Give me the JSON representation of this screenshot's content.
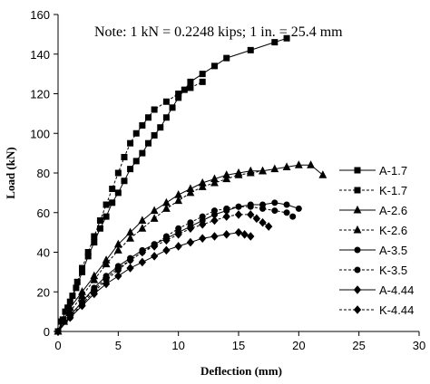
{
  "chart_data": {
    "type": "line",
    "title": "",
    "note": "Note: 1 kN = 0.2248 kips; 1 in. = 25.4 mm",
    "xlabel": "Deflection (mm)",
    "ylabel": "Load (kN)",
    "xlim": [
      0,
      30
    ],
    "ylim": [
      0,
      160
    ],
    "xticks": [
      0,
      5,
      10,
      15,
      20,
      25,
      30
    ],
    "yticks": [
      0,
      20,
      40,
      60,
      80,
      100,
      120,
      140,
      160
    ],
    "grid": false,
    "legend_position": "right",
    "series": [
      {
        "name": "A-1.7",
        "marker": "square",
        "dash": "solid",
        "color": "#000000",
        "points": [
          [
            0,
            0
          ],
          [
            0.3,
            5
          ],
          [
            0.6,
            10
          ],
          [
            1,
            15
          ],
          [
            1.5,
            22
          ],
          [
            2,
            30
          ],
          [
            2.5,
            38
          ],
          [
            3,
            45
          ],
          [
            3.5,
            52
          ],
          [
            4,
            58
          ],
          [
            4.5,
            65
          ],
          [
            5,
            70
          ],
          [
            5.5,
            76
          ],
          [
            6,
            82
          ],
          [
            6.5,
            86
          ],
          [
            7,
            90
          ],
          [
            7.5,
            95
          ],
          [
            8,
            99
          ],
          [
            8.5,
            103
          ],
          [
            9,
            108
          ],
          [
            9.5,
            113
          ],
          [
            10,
            118
          ],
          [
            10.5,
            122
          ],
          [
            11,
            126
          ],
          [
            12,
            130
          ],
          [
            13,
            134
          ],
          [
            14,
            138
          ],
          [
            16,
            142
          ],
          [
            18,
            146
          ],
          [
            19,
            148
          ]
        ]
      },
      {
        "name": "K-1.7",
        "marker": "square",
        "dash": "dash",
        "color": "#000000",
        "points": [
          [
            0,
            0
          ],
          [
            0.4,
            6
          ],
          [
            0.8,
            12
          ],
          [
            1.2,
            18
          ],
          [
            1.6,
            25
          ],
          [
            2,
            32
          ],
          [
            2.5,
            40
          ],
          [
            3,
            48
          ],
          [
            3.5,
            56
          ],
          [
            4,
            64
          ],
          [
            4.5,
            72
          ],
          [
            5,
            80
          ],
          [
            5.5,
            88
          ],
          [
            6,
            95
          ],
          [
            6.5,
            100
          ],
          [
            7,
            104
          ],
          [
            7.5,
            108
          ],
          [
            8,
            112
          ],
          [
            9,
            116
          ],
          [
            10,
            120
          ],
          [
            11,
            123
          ],
          [
            12,
            126
          ]
        ]
      },
      {
        "name": "A-2.6",
        "marker": "triangle",
        "dash": "solid",
        "color": "#000000",
        "points": [
          [
            0,
            0
          ],
          [
            0.5,
            6
          ],
          [
            1,
            12
          ],
          [
            2,
            20
          ],
          [
            3,
            28
          ],
          [
            4,
            36
          ],
          [
            5,
            44
          ],
          [
            6,
            50
          ],
          [
            7,
            56
          ],
          [
            8,
            61
          ],
          [
            9,
            65
          ],
          [
            10,
            69
          ],
          [
            11,
            72
          ],
          [
            12,
            75
          ],
          [
            13,
            77
          ],
          [
            14,
            79
          ],
          [
            15,
            80
          ],
          [
            16,
            81
          ],
          [
            17,
            81
          ],
          [
            18,
            82
          ],
          [
            19,
            83
          ],
          [
            20,
            84
          ],
          [
            21,
            84
          ],
          [
            22,
            79
          ]
        ]
      },
      {
        "name": "K-2.6",
        "marker": "triangle",
        "dash": "dash",
        "color": "#000000",
        "points": [
          [
            0,
            0
          ],
          [
            0.5,
            5
          ],
          [
            1,
            10
          ],
          [
            2,
            18
          ],
          [
            3,
            26
          ],
          [
            4,
            34
          ],
          [
            5,
            41
          ],
          [
            6,
            47
          ],
          [
            7,
            52
          ],
          [
            8,
            57
          ],
          [
            9,
            62
          ],
          [
            10,
            66
          ],
          [
            11,
            70
          ],
          [
            12,
            73
          ],
          [
            13,
            75
          ],
          [
            14,
            77
          ],
          [
            15,
            79
          ],
          [
            16,
            80
          ],
          [
            17,
            81
          ]
        ]
      },
      {
        "name": "A-3.5",
        "marker": "circle",
        "dash": "solid",
        "color": "#000000",
        "points": [
          [
            0,
            0
          ],
          [
            1,
            8
          ],
          [
            2,
            15
          ],
          [
            3,
            22
          ],
          [
            4,
            28
          ],
          [
            5,
            33
          ],
          [
            6,
            37
          ],
          [
            7,
            41
          ],
          [
            8,
            44
          ],
          [
            9,
            47
          ],
          [
            10,
            50
          ],
          [
            11,
            53
          ],
          [
            12,
            56
          ],
          [
            13,
            59
          ],
          [
            14,
            61
          ],
          [
            15,
            63
          ],
          [
            16,
            64
          ],
          [
            17,
            64
          ],
          [
            18,
            65
          ],
          [
            19,
            64
          ],
          [
            20,
            62
          ]
        ]
      },
      {
        "name": "K-3.5",
        "marker": "circle",
        "dash": "dash",
        "color": "#000000",
        "points": [
          [
            0,
            0
          ],
          [
            1,
            7
          ],
          [
            2,
            14
          ],
          [
            3,
            20
          ],
          [
            4,
            26
          ],
          [
            5,
            31
          ],
          [
            6,
            36
          ],
          [
            7,
            40
          ],
          [
            8,
            44
          ],
          [
            9,
            48
          ],
          [
            10,
            52
          ],
          [
            11,
            55
          ],
          [
            12,
            58
          ],
          [
            13,
            61
          ],
          [
            14,
            62
          ],
          [
            15,
            63
          ],
          [
            16,
            63
          ],
          [
            17,
            62
          ],
          [
            18,
            61
          ],
          [
            19,
            60
          ],
          [
            19.5,
            58
          ]
        ]
      },
      {
        "name": "A-4.44",
        "marker": "diamond",
        "dash": "solid",
        "color": "#000000",
        "points": [
          [
            0,
            0
          ],
          [
            1,
            7
          ],
          [
            2,
            13
          ],
          [
            3,
            19
          ],
          [
            4,
            24
          ],
          [
            5,
            28
          ],
          [
            6,
            32
          ],
          [
            7,
            35
          ],
          [
            8,
            38
          ],
          [
            9,
            41
          ],
          [
            10,
            43
          ],
          [
            11,
            45
          ],
          [
            12,
            47
          ],
          [
            13,
            48
          ],
          [
            14,
            49
          ],
          [
            15,
            50
          ],
          [
            15.5,
            49
          ],
          [
            16,
            48
          ]
        ]
      },
      {
        "name": "K-4.44",
        "marker": "diamond",
        "dash": "dash",
        "color": "#000000",
        "points": [
          [
            0,
            0
          ],
          [
            1,
            8
          ],
          [
            2,
            15
          ],
          [
            3,
            21
          ],
          [
            4,
            27
          ],
          [
            5,
            32
          ],
          [
            6,
            36
          ],
          [
            7,
            40
          ],
          [
            8,
            43
          ],
          [
            9,
            46
          ],
          [
            10,
            49
          ],
          [
            11,
            52
          ],
          [
            12,
            54
          ],
          [
            13,
            56
          ],
          [
            14,
            58
          ],
          [
            15,
            59
          ],
          [
            16,
            59
          ],
          [
            16.5,
            57
          ],
          [
            17,
            55
          ],
          [
            17.5,
            53
          ]
        ]
      }
    ]
  }
}
